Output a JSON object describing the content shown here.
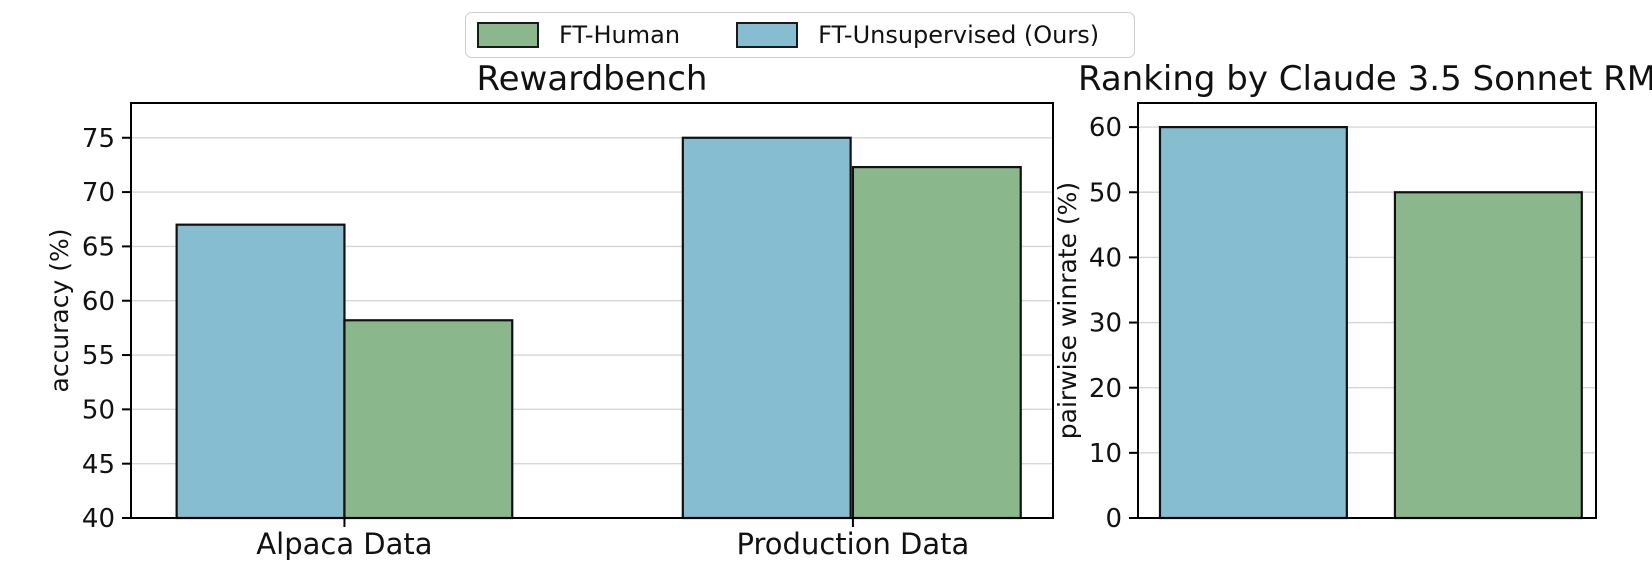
{
  "figure": {
    "background": "#ffffff"
  },
  "legend": {
    "items": [
      {
        "label": "FT-Human",
        "color": "#8ab88c"
      },
      {
        "label": "FT-Unsupervised (Ours)",
        "color": "#86bdd1"
      }
    ]
  },
  "colors": {
    "ft_human": "#8ab88c",
    "ft_unsupervised": "#86bdd1",
    "bar_edge": "#111111",
    "grid": "#d6d6d6",
    "spine": "#000000",
    "text": "#111111"
  },
  "chart_data": [
    {
      "type": "bar",
      "title": "Rewardbench",
      "ylabel": "accuracy (%)",
      "xlabel": "",
      "categories": [
        "Alpaca Data",
        "Production Data"
      ],
      "series": [
        {
          "name": "FT-Unsupervised (Ours)",
          "color": "#86bdd1",
          "values": [
            67.0,
            75.0
          ]
        },
        {
          "name": "FT-Human",
          "color": "#8ab88c",
          "values": [
            58.2,
            72.3
          ]
        }
      ],
      "ylim": [
        40,
        78.2
      ],
      "yticks": [
        40,
        45,
        50,
        55,
        60,
        65,
        70,
        75
      ],
      "grid": true,
      "legend_position": "top-center-of-figure"
    },
    {
      "type": "bar",
      "title": "Ranking by Claude 3.5 Sonnet RM",
      "ylabel": "pairwise winrate (%)",
      "xlabel": "",
      "categories": [
        ""
      ],
      "series": [
        {
          "name": "FT-Unsupervised (Ours)",
          "color": "#86bdd1",
          "values": [
            60
          ]
        },
        {
          "name": "FT-Human",
          "color": "#8ab88c",
          "values": [
            50
          ]
        }
      ],
      "ylim": [
        0,
        63.7
      ],
      "yticks": [
        0,
        10,
        20,
        30,
        40,
        50,
        60
      ],
      "grid": true,
      "legend_position": "top-center-of-figure"
    }
  ]
}
